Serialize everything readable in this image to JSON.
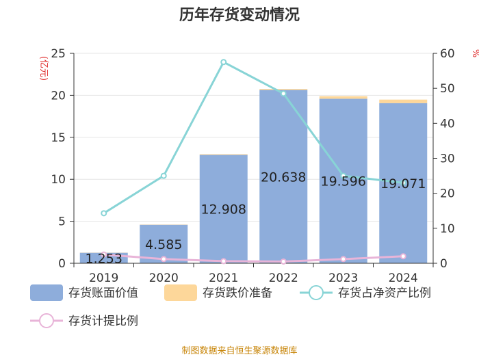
{
  "chart_data": {
    "type": "bar",
    "title": "历年存货变动情况",
    "categories": [
      "2019",
      "2020",
      "2021",
      "2022",
      "2023",
      "2024"
    ],
    "series": [
      {
        "name": "存货账面价值",
        "type": "bar",
        "axis": "left",
        "stack": "inv",
        "values": [
          1.253,
          4.585,
          12.908,
          20.638,
          19.596,
          19.071
        ],
        "labels": [
          "1.253",
          "4.585",
          "12.908",
          "20.638",
          "19.596",
          "19.071"
        ],
        "color": "#8eaddb"
      },
      {
        "name": "存货跌价准备",
        "type": "bar",
        "axis": "left",
        "stack": "inv",
        "values": [
          0.02,
          0.03,
          0.08,
          0.12,
          0.3,
          0.42
        ],
        "color": "#fdd79a"
      },
      {
        "name": "存货占净资产比例",
        "type": "line",
        "axis": "right",
        "values": [
          14.3,
          25.0,
          57.5,
          48.5,
          25.0,
          23.0
        ],
        "color": "#88d4d6"
      },
      {
        "name": "存货计提比例",
        "type": "line",
        "axis": "right",
        "values": [
          2.5,
          1.2,
          0.6,
          0.5,
          1.2,
          2.0
        ],
        "color": "#e8b4d8"
      }
    ],
    "left_axis": {
      "label": "(亿元)",
      "min": 0,
      "max": 25,
      "ticks": [
        0,
        5,
        10,
        15,
        20,
        25
      ]
    },
    "right_axis": {
      "label": "%",
      "min": 0,
      "max": 60,
      "ticks": [
        0,
        10,
        20,
        30,
        40,
        50,
        60
      ]
    },
    "grid": true,
    "legend_position": "bottom"
  },
  "footer": {
    "source": "制图数据来自恒生聚源数据库"
  }
}
